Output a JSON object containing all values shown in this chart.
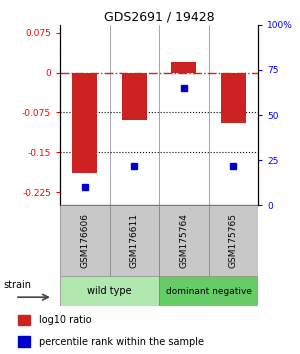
{
  "title": "GDS2691 / 19428",
  "samples": [
    "GSM176606",
    "GSM176611",
    "GSM175764",
    "GSM175765"
  ],
  "log10_ratio": [
    -0.19,
    -0.09,
    0.02,
    -0.095
  ],
  "percentile_rank": [
    10,
    22,
    65,
    22
  ],
  "ylim_left": [
    -0.25,
    0.09
  ],
  "ylim_right": [
    0,
    100
  ],
  "yticks_left": [
    0.075,
    0,
    -0.075,
    -0.15,
    -0.225
  ],
  "yticks_right": [
    100,
    75,
    50,
    25,
    0
  ],
  "bar_color": "#cc2222",
  "dot_color": "#0000cc",
  "hline_color": "#cc2222",
  "dotted_line_color": "#000000",
  "background_color": "#ffffff",
  "label_area_color": "#c8c8c8",
  "wt_color": "#b0e8b0",
  "dn_color": "#66cc66",
  "legend_bar_label": "log10 ratio",
  "legend_dot_label": "percentile rank within the sample",
  "strain_label": "strain",
  "arrow_color": "#666666",
  "figwidth": 3.0,
  "figheight": 3.54,
  "dpi": 100
}
